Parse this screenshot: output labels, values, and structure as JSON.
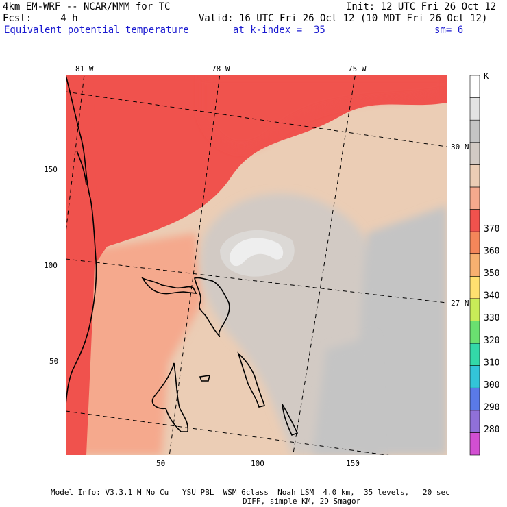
{
  "header": {
    "model": "4km EM-WRF -- NCAR/MMM for TC",
    "init": "Init: 12 UTC Fri 26 Oct 12",
    "fcst": "Fcst:     4 h",
    "valid": "Valid: 16 UTC Fri 26 Oct 12 (10 MDT Fri 26 Oct 12)",
    "field": "Equivalent potential temperature",
    "level": "at k-index =  35",
    "smooth": "sm= 6"
  },
  "map": {
    "lon_labels": [
      "81 W",
      "78 W",
      "75 W"
    ],
    "lat_labels": [
      "30 N",
      "27 N"
    ],
    "x_ticks": [
      "50",
      "100",
      "150"
    ],
    "y_ticks": [
      "150",
      "100",
      "50"
    ],
    "dominant_fill": "#e9c8b2"
  },
  "colorbar": {
    "unit": "K",
    "levels": [
      "280",
      "290",
      "300",
      "310",
      "320",
      "330",
      "340",
      "350",
      "360",
      "370"
    ],
    "colors": [
      "#d24fd2",
      "#9070d8",
      "#5a7ae8",
      "#33c4d8",
      "#33d8a8",
      "#6ae070",
      "#c8ec58",
      "#ffe070",
      "#f7b070",
      "#f4865a",
      "#f0524d",
      "#f5a98d",
      "#ebcdb5",
      "#d2cac4",
      "#c4c4c4",
      "#e3e3e3",
      "#ffffff"
    ]
  },
  "footer": {
    "line1": "Model Info: V3.3.1 M No Cu   YSU PBL  WSM 6class  Noah LSM  4.0 km,  35 levels,   20 sec",
    "line2": "DIFF, simple KM, 2D Smagor"
  }
}
